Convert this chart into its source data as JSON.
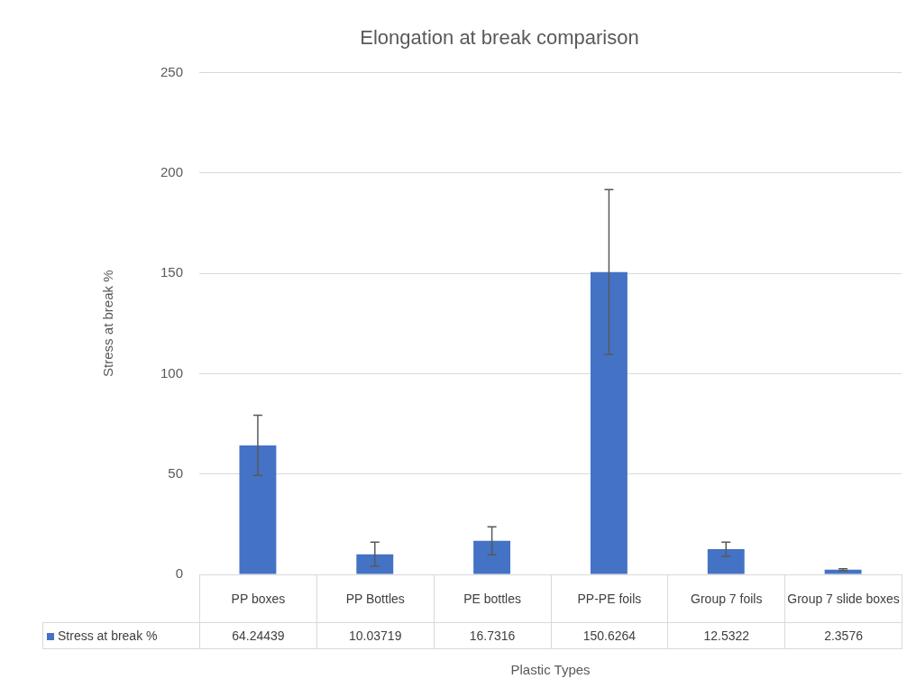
{
  "chart_data": {
    "type": "bar",
    "title": "Elongation at break comparison",
    "xlabel": "Plastic Types",
    "ylabel": "Stress at break %",
    "categories": [
      "PP boxes",
      "PP Bottles",
      "PE bottles",
      "PP-PE foils",
      "Group 7 foils",
      "Group 7 slide boxes"
    ],
    "series": [
      {
        "name": "Stress at break %",
        "color": "#4472c4",
        "values": [
          64.24439,
          10.03719,
          16.7316,
          150.6264,
          12.5322,
          2.3576
        ],
        "errors": [
          15,
          6,
          7,
          41,
          3.5,
          0.5
        ]
      }
    ],
    "ylim": [
      0,
      250
    ],
    "yticks": [
      0,
      50,
      100,
      150,
      200,
      250
    ],
    "grid": "y",
    "legend": "bottom",
    "data_labels": true
  }
}
